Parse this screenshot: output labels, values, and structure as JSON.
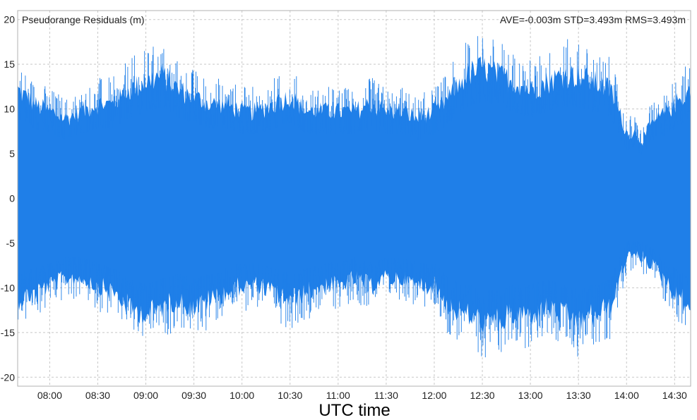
{
  "chart_data": {
    "type": "area",
    "title": "Pseudorange Residuals (m)",
    "stats": "AVE=-0.003m STD=3.493m RMS=3.493m",
    "xlabel": "UTC time",
    "ylabel": "",
    "ylim": [
      -21,
      21
    ],
    "xlim": [
      "07:40",
      "14:40"
    ],
    "y_ticks": [
      "20",
      "15",
      "10",
      "5",
      "0",
      "-5",
      "-10",
      "-15",
      "-20"
    ],
    "x_ticks": [
      "08:00",
      "08:30",
      "09:00",
      "09:30",
      "10:00",
      "10:30",
      "11:00",
      "11:30",
      "12:00",
      "12:30",
      "13:00",
      "13:30",
      "14:00",
      "14:30"
    ],
    "grid": true,
    "series": [
      {
        "color": "#1f7fe8",
        "x": [
          "07:40",
          "07:50",
          "08:00",
          "08:10",
          "08:20",
          "08:30",
          "08:40",
          "08:50",
          "09:00",
          "09:10",
          "09:20",
          "09:30",
          "09:40",
          "09:50",
          "10:00",
          "10:10",
          "10:20",
          "10:30",
          "10:40",
          "10:50",
          "11:00",
          "11:10",
          "11:20",
          "11:30",
          "11:40",
          "11:50",
          "12:00",
          "12:10",
          "12:20",
          "12:30",
          "12:40",
          "12:50",
          "13:00",
          "13:10",
          "13:20",
          "13:30",
          "13:40",
          "13:50",
          "14:00",
          "14:05",
          "14:10",
          "14:15",
          "14:20",
          "14:30",
          "14:40"
        ],
        "upper": [
          15,
          13,
          12,
          11,
          12,
          13,
          13,
          15,
          16,
          17,
          15,
          14,
          13,
          13,
          12,
          12,
          13,
          14,
          12,
          12,
          12,
          12,
          13,
          12,
          12,
          11,
          12,
          14,
          17,
          18,
          17,
          16,
          15,
          16,
          17,
          17,
          16,
          15,
          9,
          9,
          8,
          10,
          11,
          13,
          15
        ],
        "lower": [
          -14,
          -13,
          -12,
          -11,
          -11,
          -12,
          -13,
          -15,
          -16,
          -15,
          -14,
          -15,
          -14,
          -13,
          -12,
          -12,
          -13,
          -14,
          -13,
          -12,
          -12,
          -11,
          -12,
          -11,
          -11,
          -12,
          -12,
          -15,
          -16,
          -17,
          -17,
          -16,
          -16,
          -15,
          -16,
          -17,
          -16,
          -15,
          -8,
          -8,
          -8,
          -9,
          -10,
          -13,
          -15
        ]
      }
    ]
  }
}
